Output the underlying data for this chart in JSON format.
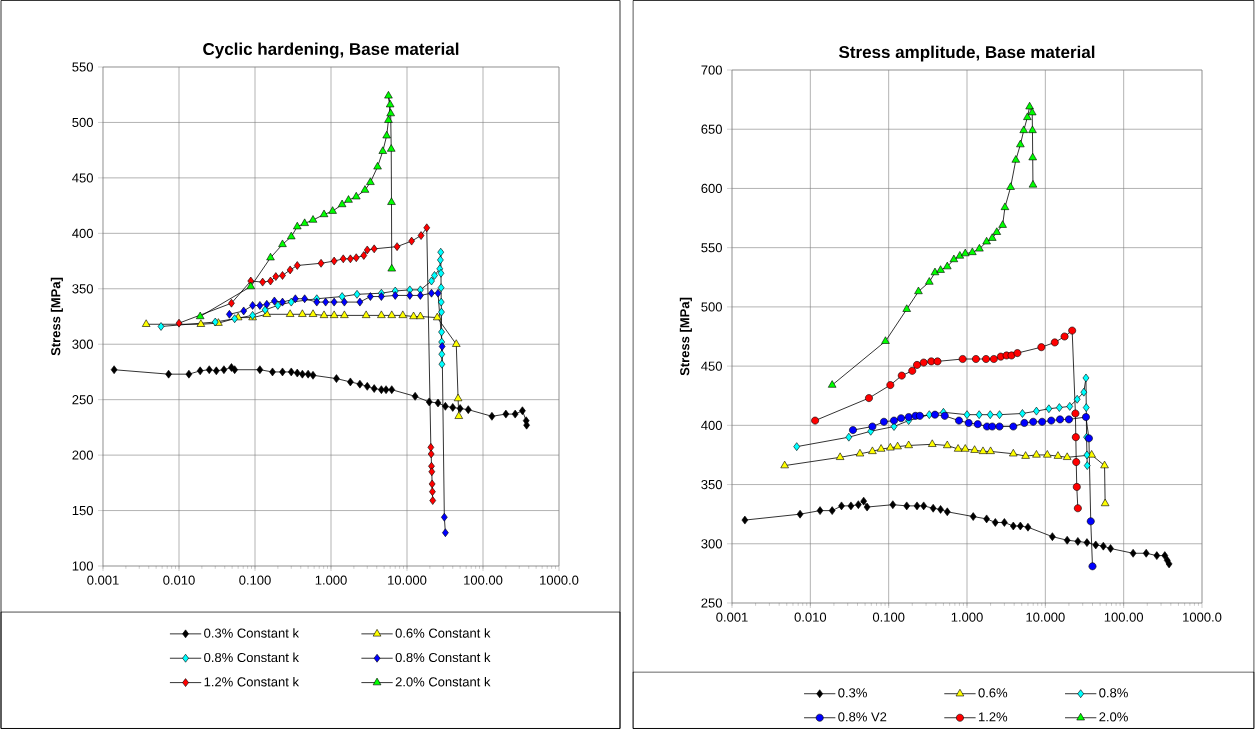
{
  "chart_data": [
    {
      "type": "line",
      "title": "Cyclic hardening, Base material",
      "ylabel": "Stress [MPa]",
      "log": "x",
      "grid": true,
      "legend": "bottom",
      "xlim": [
        0.001,
        1000
      ],
      "ylim": [
        100,
        550
      ],
      "xticks": [
        {
          "value": 0.001,
          "label": "0.001"
        },
        {
          "value": 0.01,
          "label": "0.010"
        },
        {
          "value": 0.1,
          "label": "0.100"
        },
        {
          "value": 1,
          "label": "1.000"
        },
        {
          "value": 10,
          "label": "10.000"
        },
        {
          "value": 100,
          "label": "100.00"
        },
        {
          "value": 1000,
          "label": "1000.0"
        }
      ],
      "yticks": [
        100,
        150,
        200,
        250,
        300,
        350,
        400,
        450,
        500,
        550
      ],
      "series": [
        {
          "name": "0.3% Constant k",
          "color": "#000000",
          "marker": "diamond",
          "x": [
            0.0014,
            0.0073,
            0.0135,
            0.019,
            0.025,
            0.031,
            0.039,
            0.049,
            0.054,
            0.116,
            0.17,
            0.23,
            0.3,
            0.36,
            0.42,
            0.5,
            0.58,
            1.18,
            1.8,
            2.4,
            3.0,
            3.7,
            4.6,
            5.3,
            6.3,
            12.8,
            19.6,
            25.6,
            32,
            40,
            50,
            64,
            131,
            200,
            265,
            330,
            370,
            375
          ],
          "values": [
            277,
            273,
            273,
            276,
            277,
            276,
            277,
            279,
            277,
            277,
            275,
            275,
            275,
            274,
            273,
            273,
            272,
            269,
            266,
            264,
            262,
            260,
            259,
            259,
            259,
            253,
            248,
            247,
            244,
            243,
            242,
            241,
            235,
            237,
            237,
            240,
            231,
            227
          ]
        },
        {
          "name": "0.6% Constant k",
          "color": "#ffff00",
          "marker": "triangle",
          "x": [
            0.0037,
            0.0194,
            0.033,
            0.06,
            0.093,
            0.143,
            0.29,
            0.42,
            0.58,
            0.81,
            1.1,
            1.5,
            2.9,
            4.6,
            6.3,
            8.8,
            12.2,
            15,
            25,
            44.5,
            47,
            48
          ],
          "values": [
            318,
            318,
            319,
            324,
            324,
            327,
            327,
            327,
            327,
            326,
            326,
            326,
            326,
            326,
            326,
            326,
            325,
            325,
            324,
            300,
            251,
            235
          ]
        },
        {
          "name": "0.8% Constant k",
          "color": "#00ffff",
          "marker": "diamond",
          "x": [
            0.0058,
            0.03,
            0.054,
            0.093,
            0.136,
            0.2,
            0.3,
            0.65,
            1.4,
            2.2,
            4.6,
            7.0,
            10.9,
            15,
            21,
            23,
            27,
            27.5,
            27.8,
            28,
            28.1,
            28.2,
            28.4,
            28.5,
            28.6,
            28.7,
            28.8
          ],
          "values": [
            316,
            320,
            323,
            326,
            331,
            335,
            338,
            341,
            343,
            345,
            346,
            348,
            349,
            349,
            357,
            362,
            368,
            376,
            383,
            364,
            351,
            338,
            329,
            311,
            302,
            291,
            282
          ]
        },
        {
          "name": "0.8% Constant k",
          "color": "#0000ff",
          "marker": "diamond",
          "x": [
            0.046,
            0.071,
            0.093,
            0.116,
            0.143,
            0.18,
            0.23,
            0.34,
            0.45,
            0.65,
            0.85,
            1.1,
            1.5,
            2.4,
            3.3,
            4.6,
            7.0,
            10.9,
            15,
            21,
            25.6,
            29,
            31,
            32
          ],
          "values": [
            327,
            330,
            335,
            335,
            336,
            339,
            338,
            341,
            341,
            338,
            338,
            338,
            338,
            338,
            343,
            343,
            344,
            344,
            344,
            346,
            346,
            298,
            144,
            130
          ]
        },
        {
          "name": "1.2% Constant k",
          "color": "#ff0000",
          "marker": "diamond",
          "x": [
            0.01,
            0.049,
            0.088,
            0.126,
            0.16,
            0.188,
            0.23,
            0.29,
            0.36,
            0.74,
            1.1,
            1.45,
            1.8,
            2.15,
            2.7,
            3.0,
            3.7,
            7.4,
            11.5,
            15.3,
            18.2,
            20.6,
            20.8,
            21,
            21.2,
            21.4,
            21.6,
            21.8
          ],
          "values": [
            319,
            337,
            357,
            356,
            357,
            361,
            362,
            367,
            371,
            373,
            375,
            377,
            377,
            378,
            380,
            385,
            386,
            388,
            393,
            398,
            405,
            207,
            201,
            190,
            185,
            174,
            167,
            159
          ]
        },
        {
          "name": "2.0% Constant k",
          "color": "#00ff00",
          "marker": "triangle",
          "x": [
            0.019,
            0.088,
            0.16,
            0.23,
            0.3,
            0.36,
            0.45,
            0.58,
            0.81,
            1.05,
            1.4,
            1.7,
            2.15,
            2.8,
            3.3,
            4.1,
            4.8,
            5.4,
            5.7,
            6.0,
            5.7,
            6.1,
            6.2,
            6.25,
            6.3
          ],
          "values": [
            325,
            352,
            378,
            390,
            397,
            406,
            409,
            412,
            417,
            420,
            426,
            430,
            433,
            439,
            446,
            460,
            474,
            488,
            502,
            516,
            524,
            508,
            476,
            428,
            368
          ]
        }
      ]
    },
    {
      "type": "line",
      "title": "Stress amplitude, Base material",
      "ylabel": "Stress [MPa]",
      "log": "x",
      "grid": true,
      "legend": "bottom",
      "xlim": [
        0.001,
        1000
      ],
      "ylim": [
        250,
        700
      ],
      "xticks": [
        {
          "value": 0.001,
          "label": "0.001"
        },
        {
          "value": 0.01,
          "label": "0.010"
        },
        {
          "value": 0.1,
          "label": "0.100"
        },
        {
          "value": 1,
          "label": "1.000"
        },
        {
          "value": 10,
          "label": "10.000"
        },
        {
          "value": 100,
          "label": "100.00"
        },
        {
          "value": 1000,
          "label": "1000.0"
        }
      ],
      "yticks": [
        250,
        300,
        350,
        400,
        450,
        500,
        550,
        600,
        650,
        700
      ],
      "series": [
        {
          "name": "0.3%",
          "color": "#000000",
          "marker": "diamond",
          "x": [
            0.00146,
            0.0074,
            0.0133,
            0.019,
            0.025,
            0.033,
            0.041,
            0.048,
            0.053,
            0.113,
            0.17,
            0.23,
            0.28,
            0.37,
            0.46,
            0.56,
            1.2,
            1.78,
            2.3,
            3.0,
            3.9,
            4.8,
            6.0,
            12.3,
            19,
            26,
            34,
            44,
            55,
            68,
            132,
            194,
            265,
            335,
            360,
            380
          ],
          "values": [
            320,
            325,
            328,
            328,
            332,
            332,
            333,
            336,
            331,
            333,
            332,
            332,
            332,
            330,
            329,
            327,
            323,
            321,
            318,
            318,
            315,
            315,
            314,
            306,
            303,
            302,
            301,
            299,
            298,
            296,
            292,
            292,
            290,
            290,
            286,
            283
          ]
        },
        {
          "name": "0.6%",
          "color": "#ffff00",
          "marker": "triangle",
          "x": [
            0.0047,
            0.024,
            0.043,
            0.062,
            0.08,
            0.105,
            0.13,
            0.18,
            0.36,
            0.56,
            0.77,
            0.95,
            1.25,
            1.6,
            2.0,
            3.9,
            5.6,
            7.7,
            10.6,
            14.5,
            19,
            39,
            57,
            58
          ],
          "values": [
            366,
            373,
            376,
            378,
            380,
            381,
            382,
            383,
            384,
            383,
            380,
            380,
            379,
            378,
            378,
            376,
            374,
            375,
            375,
            374,
            373,
            375,
            366,
            334
          ]
        },
        {
          "name": "0.8%",
          "color": "#00ffff",
          "marker": "diamond",
          "x": [
            0.0067,
            0.031,
            0.059,
            0.117,
            0.18,
            0.33,
            0.5,
            1.0,
            1.43,
            1.98,
            2.6,
            5.1,
            7.7,
            11.1,
            15.1,
            20.5,
            25.5,
            31,
            33,
            33.3,
            33.6,
            34,
            34.3
          ],
          "values": [
            382,
            390,
            395,
            399,
            404,
            409,
            411,
            409,
            409,
            409,
            409,
            410,
            412,
            414,
            415,
            416,
            422,
            428,
            440,
            415,
            390,
            375,
            366
          ]
        },
        {
          "name": "0.8% V2",
          "color": "#0000ff",
          "marker": "circle",
          "x": [
            0.035,
            0.062,
            0.087,
            0.117,
            0.144,
            0.18,
            0.22,
            0.25,
            0.39,
            0.52,
            0.79,
            1.05,
            1.37,
            1.8,
            2.1,
            2.6,
            3.9,
            5.4,
            7.0,
            9.1,
            11.9,
            15.4,
            20,
            33,
            36,
            38,
            40
          ],
          "values": [
            396,
            399,
            403,
            404,
            406,
            407,
            408,
            408,
            409,
            408,
            404,
            402,
            401,
            399,
            399,
            399,
            399,
            402,
            403,
            403,
            404,
            405,
            405,
            407,
            389,
            319,
            281
          ]
        },
        {
          "name": "1.2%",
          "color": "#ff0000",
          "marker": "circle",
          "x": [
            0.0115,
            0.056,
            0.105,
            0.147,
            0.2,
            0.23,
            0.28,
            0.35,
            0.42,
            0.88,
            1.3,
            1.75,
            2.2,
            2.7,
            3.2,
            3.7,
            4.4,
            8.9,
            13.2,
            17.6,
            22,
            24.2,
            24.5,
            24.8,
            25.2,
            26
          ],
          "values": [
            404,
            423,
            434,
            442,
            446,
            451,
            453,
            454,
            454,
            456,
            456,
            456,
            456,
            458,
            459,
            459,
            461,
            466,
            470,
            475,
            480,
            410,
            390,
            369,
            348,
            330
          ]
        },
        {
          "name": "2.0%",
          "color": "#00ff00",
          "marker": "triangle",
          "x": [
            0.019,
            0.091,
            0.17,
            0.24,
            0.33,
            0.39,
            0.46,
            0.56,
            0.68,
            0.81,
            0.95,
            1.17,
            1.44,
            1.78,
            2.1,
            2.4,
            2.85,
            3.05,
            3.6,
            4.2,
            4.8,
            5.3,
            5.9,
            6.3,
            6.8,
            6.85,
            6.9,
            6.95
          ],
          "values": [
            434,
            471,
            498,
            513,
            521,
            529,
            531,
            534,
            540,
            543,
            545,
            546,
            549,
            555,
            558,
            563,
            569,
            584,
            601,
            624,
            637,
            649,
            660,
            669,
            664,
            649,
            626,
            603
          ]
        }
      ]
    }
  ]
}
